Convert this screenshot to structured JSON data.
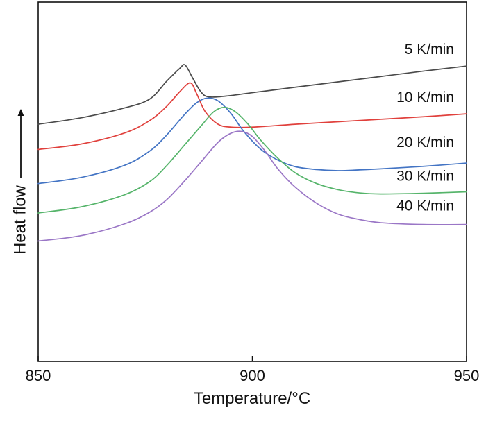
{
  "chart_data": {
    "type": "line",
    "xlabel": "Temperature/°C",
    "ylabel": "Heat flow",
    "xlim": [
      850,
      950
    ],
    "xticks": [
      850,
      900,
      950
    ],
    "x_tick_labels": [
      "850",
      "900",
      "950"
    ],
    "yticks": false,
    "grid": false,
    "legend": "inline labels at right end",
    "ylim": [
      0,
      100
    ],
    "series": [
      {
        "name": "5 K/min",
        "color": "#4a4a4a",
        "x": [
          850,
          860,
          870,
          876,
          880,
          883,
          884.3,
          886,
          888,
          890,
          895,
          900,
          910,
          920,
          930,
          940,
          950
        ],
        "y": [
          66,
          67.8,
          70.5,
          73,
          78,
          81.5,
          82.5,
          79,
          75,
          73.6,
          74,
          74.8,
          76.3,
          77.8,
          79.3,
          80.8,
          82.2
        ]
      },
      {
        "name": "10 K/min",
        "color": "#e0403c",
        "x": [
          850,
          860,
          870,
          876,
          880,
          883,
          885.5,
          887,
          889,
          892,
          895,
          900,
          910,
          920,
          930,
          940,
          950
        ],
        "y": [
          59,
          60.5,
          63.5,
          67,
          71,
          75,
          77.5,
          74.5,
          69.5,
          66,
          65.2,
          65.2,
          66,
          66.7,
          67.4,
          68.1,
          68.9
        ]
      },
      {
        "name": "20 K/min",
        "color": "#4374c4",
        "x": [
          850,
          860,
          870,
          876,
          880,
          884,
          887,
          889.5,
          892,
          895,
          898,
          902,
          906,
          910,
          915,
          920,
          925,
          930,
          940,
          950
        ],
        "y": [
          49.5,
          51.2,
          54.5,
          58.5,
          63,
          68.5,
          72,
          73.3,
          72.5,
          69,
          64,
          59,
          56,
          54.2,
          53.4,
          53.1,
          53.3,
          53.6,
          54.3,
          55.2
        ]
      },
      {
        "name": "30 K/min",
        "color": "#55b46a",
        "x": [
          850,
          860,
          870,
          876,
          880,
          884,
          888,
          891,
          893.5,
          896,
          899,
          902,
          906,
          910,
          915,
          920,
          925,
          930,
          940,
          950
        ],
        "y": [
          41.3,
          43,
          46.3,
          50,
          54.5,
          60,
          65.5,
          69.5,
          70.7,
          69.5,
          66,
          61.5,
          56.5,
          52.5,
          49.5,
          47.8,
          46.9,
          46.6,
          46.8,
          47.2
        ]
      },
      {
        "name": "40 K/min",
        "color": "#9a76c6",
        "x": [
          850,
          860,
          870,
          876,
          880,
          884,
          888,
          892,
          895,
          897.5,
          900,
          903,
          906,
          910,
          915,
          920,
          925,
          930,
          940,
          950
        ],
        "y": [
          33.5,
          35,
          38.2,
          41.5,
          45,
          50,
          55.5,
          61,
          63.5,
          64,
          62.6,
          58.5,
          53.5,
          48.5,
          44,
          41,
          39.5,
          38.6,
          38.1,
          38.1
        ]
      }
    ]
  }
}
